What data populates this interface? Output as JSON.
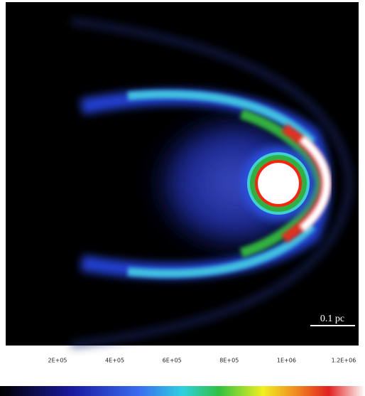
{
  "scale_bar": {
    "label": "0.1 pc"
  },
  "colorbar": {
    "tick_labels": [
      "2E+05",
      "4E+05",
      "6E+05",
      "8E+05",
      "1E+06",
      "1.2E+06"
    ]
  }
}
